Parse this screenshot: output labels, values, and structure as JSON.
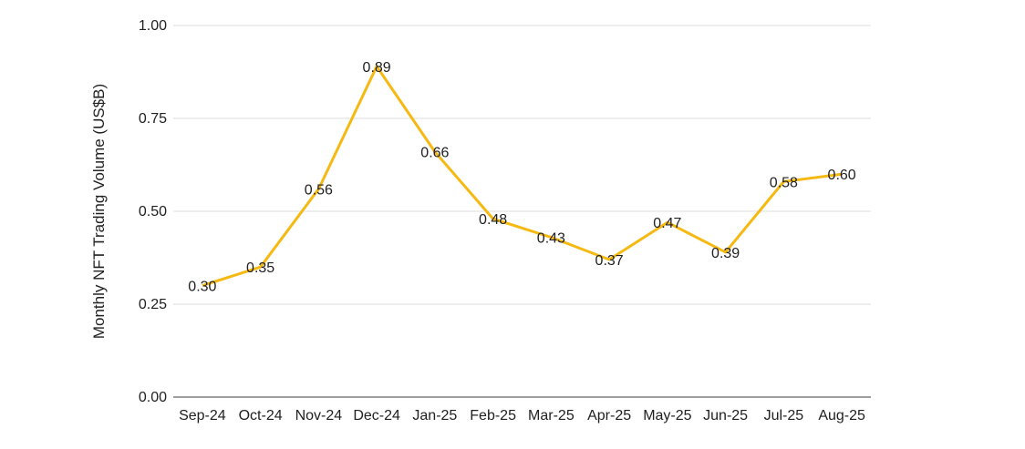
{
  "page": {
    "background": "#FFFFFF"
  },
  "chart_data": {
    "type": "line",
    "title": "",
    "xlabel": "",
    "ylabel": "Monthly NFT Trading Volume (US$B)",
    "categories": [
      "Sep-24",
      "Oct-24",
      "Nov-24",
      "Dec-24",
      "Jan-25",
      "Feb-25",
      "Mar-25",
      "Apr-25",
      "May-25",
      "Jun-25",
      "Jul-25",
      "Aug-25"
    ],
    "series": [
      {
        "name": "Monthly NFT Trading Volume (US$B)",
        "values": [
          0.3,
          0.35,
          0.56,
          0.89,
          0.66,
          0.48,
          0.43,
          0.37,
          0.47,
          0.39,
          0.58,
          0.6
        ]
      }
    ],
    "point_labels": [
      "0.30",
      "0.35",
      "0.56",
      "0.89",
      "0.66",
      "0.48",
      "0.43",
      "0.37",
      "0.47",
      "0.39",
      "0.58",
      "0.60"
    ],
    "ylim": [
      0,
      1
    ],
    "yticks": [
      "0.00",
      "0.25",
      "0.50",
      "0.75",
      "1.00"
    ],
    "grid": true,
    "legend": "none",
    "markers": false,
    "colors": {
      "line": "#F5B912",
      "gridline": "#DCDCDC",
      "axis_line": "#9E9E9E",
      "tick_label": "#212121",
      "data_label": "#212121",
      "background": "#FFFFFF"
    }
  }
}
